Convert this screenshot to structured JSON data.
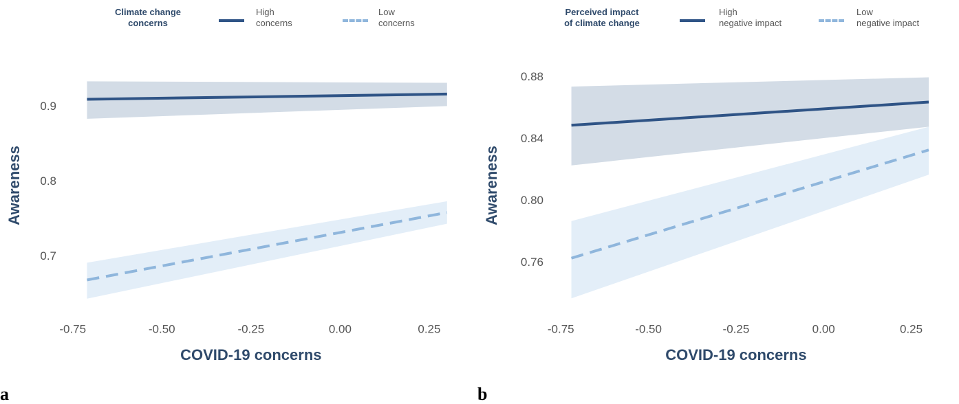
{
  "chart_data": [
    {
      "type": "line",
      "panel_label": "a",
      "xlabel": "COVID-19 concerns",
      "ylabel": "Awareness",
      "legend_title": "Climate change\nconcerns",
      "x": [
        -0.71,
        0.3
      ],
      "xlim": [
        -0.79,
        0.31
      ],
      "xticks": [
        {
          "value": -0.75,
          "label": "-0.75"
        },
        {
          "value": -0.5,
          "label": "-0.50"
        },
        -0.25,
        {
          "value": 0,
          "label": "0.00"
        },
        0.25
      ],
      "ylim": [
        0.63,
        0.96
      ],
      "yticks": [
        0.7,
        0.8,
        0.9
      ],
      "series": [
        {
          "name": "High\nconcerns",
          "color": "#2f5486",
          "band_color": "#d3dce6",
          "dashed": false,
          "values": [
            0.91,
            0.917
          ],
          "lower": [
            0.884,
            0.901
          ],
          "upper": [
            0.934,
            0.932
          ]
        },
        {
          "name": "Low\nconcerns",
          "color": "#8fb6dc",
          "band_color": "#e3eef8",
          "dashed": true,
          "values": [
            0.669,
            0.759
          ],
          "lower": [
            0.644,
            0.744
          ],
          "upper": [
            0.692,
            0.774
          ]
        }
      ]
    },
    {
      "type": "line",
      "panel_label": "b",
      "xlabel": "COVID-19 concerns",
      "ylabel": "Awareness",
      "legend_title": "Perceived impact\nof climate change",
      "x": [
        -0.72,
        0.3
      ],
      "xlim": [
        -0.78,
        0.3
      ],
      "xticks": [
        {
          "value": -0.75,
          "label": "-0.75"
        },
        {
          "value": -0.5,
          "label": "-0.50"
        },
        -0.25,
        {
          "value": 0,
          "label": "0.00"
        },
        0.25
      ],
      "ylim": [
        0.73,
        0.89
      ],
      "yticks": [
        0.76,
        {
          "value": 0.8,
          "label": "0.80"
        },
        0.84,
        0.88
      ],
      "series": [
        {
          "name": "High\nnegative impact",
          "color": "#2f5486",
          "band_color": "#d3dce6",
          "dashed": false,
          "values": [
            0.849,
            0.864
          ],
          "lower": [
            0.823,
            0.848
          ],
          "upper": [
            0.874,
            0.88
          ]
        },
        {
          "name": "Low\nnegative impact",
          "color": "#8fb6dc",
          "band_color": "#e3eef8",
          "dashed": true,
          "values": [
            0.763,
            0.833
          ],
          "lower": [
            0.737,
            0.817
          ],
          "upper": [
            0.787,
            0.848
          ]
        }
      ]
    }
  ]
}
